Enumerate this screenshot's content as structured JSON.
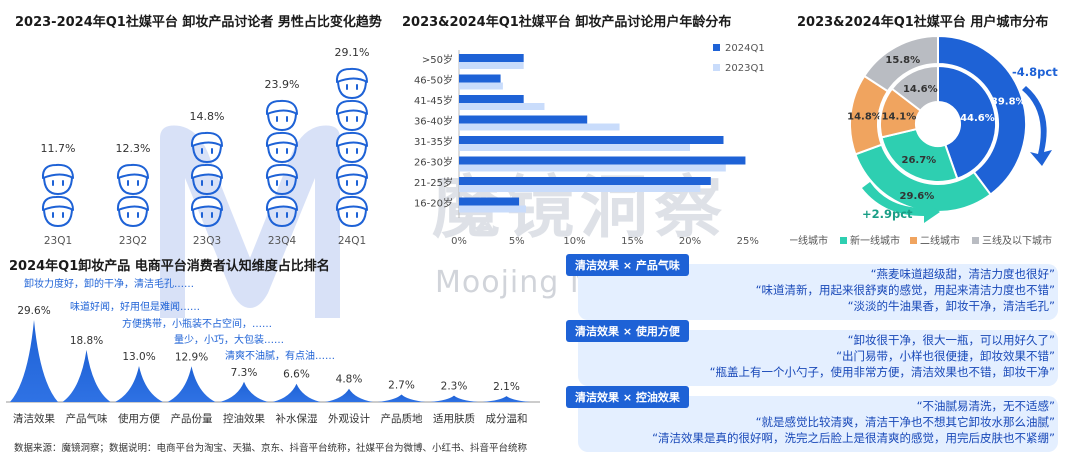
{
  "panels": {
    "male_trend_title": "2023-2024年Q1社媒平台 卸妆产品讨论者 男性占比变化趋势",
    "age_title": "2023&2024年Q1社媒平台 卸妆产品讨论用户年龄分布",
    "city_title": "2023&2024年Q1社媒平台 用户城市分布",
    "ranking_title": "2024年Q1卸妆产品 电商平台消费者认知维度占比排名"
  },
  "city_annotations": {
    "outer_change": "-4.8pct",
    "inner_change": "+2.9pct"
  },
  "annotations": [
    "卸妆力度好，卸的干净，清洁毛孔……",
    "味道好闻，好用但是难闻……",
    "方便携带，小瓶装不占空间，……",
    "量少，小巧，大包装……",
    "清爽不油腻，有点油……"
  ],
  "quote_groups": [
    {
      "tag": "清洁效果 × 产品气味",
      "quotes": [
        "“燕麦味道超级甜，清洁力度也很好”",
        "“味道清新，用起来很舒爽的感觉，用起来清洁力度也不错”",
        "“淡淡的牛油果香，卸妆干净，清洁毛孔”"
      ]
    },
    {
      "tag": "清洁效果 × 使用方便",
      "quotes": [
        "“卸妆很干净，很大一瓶，可以用好久了”",
        "“出门易带，小样也很便捷，卸妆效果不错”",
        "“瓶盖上有一个小勺子，使用非常方便，清洁效果也不错，卸妆干净”"
      ]
    },
    {
      "tag": "清洁效果 × 控油效果",
      "quotes": [
        "“不油腻易清洗，无不适感”",
        "“就是感觉比较清爽，清洁干净也不想其它卸妆水那么油腻”",
        "“清洁效果是真的很好啊，洗完之后脸上是很清爽的感觉，用完后皮肤也不紧绷”"
      ]
    }
  ],
  "watermark": {
    "cn": "魔镜洞察",
    "en": "Moojing Market Intelligence"
  },
  "source_note": "数据来源：魔镜洞察；数据说明：电商平台为淘宝、天猫、京东、抖音平台统称，社媒平台为微博、小红书、抖音平台统称",
  "colors": {
    "dark_blue": "#1e62d6",
    "light_blue": "#c9dcfb",
    "orange": "#f0a45f",
    "teal": "#2ecfb1",
    "gray": "#b9bcc2"
  },
  "chart_data": [
    {
      "id": "male_trend",
      "type": "pictograph",
      "categories": [
        "23Q1",
        "23Q2",
        "23Q3",
        "23Q4",
        "24Q1"
      ],
      "values": [
        11.7,
        12.3,
        14.8,
        23.9,
        29.1
      ],
      "labels": [
        "11.7%",
        "12.3%",
        "14.8%",
        "23.9%",
        "29.1%"
      ],
      "icon": "male-face-icon",
      "icons_per_column": [
        2,
        2,
        3,
        4,
        5
      ]
    },
    {
      "id": "age_distribution",
      "type": "bar",
      "orientation": "horizontal",
      "categories": [
        ">50岁",
        "46-50岁",
        "41-45岁",
        "36-40岁",
        "31-35岁",
        "26-30岁",
        "21-25岁",
        "16-20岁"
      ],
      "series": [
        {
          "name": "2024Q1",
          "values": [
            5.6,
            3.6,
            5.6,
            11.1,
            22.9,
            24.8,
            21.8,
            5.2
          ],
          "color": "#1e62d6"
        },
        {
          "name": "2023Q1",
          "values": [
            5.6,
            3.8,
            7.4,
            13.9,
            20.0,
            23.1,
            20.9,
            5.8
          ],
          "color": "#c9dcfb"
        }
      ],
      "xlim": [
        0,
        25
      ],
      "xticks": [
        "0%",
        "5%",
        "10%",
        "15%",
        "20%",
        "25%"
      ],
      "legend": "top-right"
    },
    {
      "id": "city_distribution",
      "type": "donut",
      "categories": [
        "一线城市",
        "新一线城市",
        "二线城市",
        "三线及以下城市"
      ],
      "colors": [
        "#1e62d6",
        "#2ecfb1",
        "#f0a45f",
        "#b9bcc2"
      ],
      "rings": [
        {
          "ring": "outer",
          "values": [
            39.8,
            29.6,
            14.8,
            15.8
          ],
          "labels": [
            "39.8%",
            "29.6%",
            "14.8%",
            "15.8%"
          ]
        },
        {
          "ring": "inner",
          "values": [
            44.6,
            26.7,
            14.1,
            14.6
          ],
          "labels": [
            "44.6%",
            "26.7%",
            "14.1%",
            "14.6%"
          ]
        }
      ],
      "legend": "bottom"
    },
    {
      "id": "perception_ranking",
      "type": "peak",
      "categories": [
        "清洁效果",
        "产品气味",
        "使用方便",
        "产品份量",
        "控油效果",
        "补水保湿",
        "外观设计",
        "产品质地",
        "适用肤质",
        "成分温和"
      ],
      "values": [
        29.6,
        18.8,
        13.0,
        12.9,
        7.3,
        6.6,
        4.8,
        2.7,
        2.3,
        2.1
      ],
      "labels": [
        "29.6%",
        "18.8%",
        "13.0%",
        "12.9%",
        "7.3%",
        "6.6%",
        "4.8%",
        "2.7%",
        "2.3%",
        "2.1%"
      ]
    }
  ]
}
